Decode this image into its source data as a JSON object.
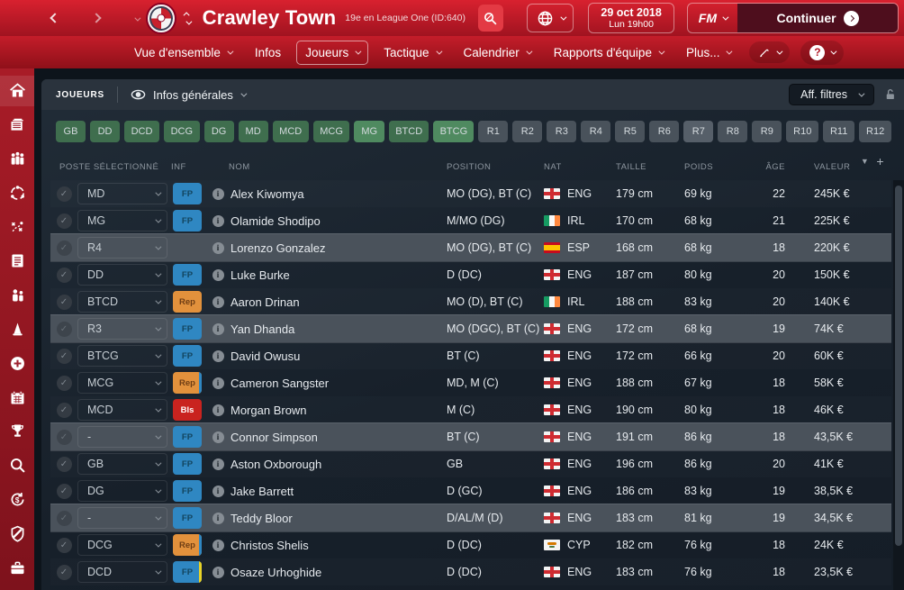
{
  "topbar": {
    "club_name": "Crawley Town",
    "club_subtitle": "19e en League One (ID:640)",
    "date_line1": "29 oct 2018",
    "date_line2": "Lun 19h00",
    "fm_label": "FM",
    "continue_label": "Continuer"
  },
  "nav": {
    "items": [
      {
        "label": "Vue d'ensemble",
        "caret": true,
        "active": false
      },
      {
        "label": "Infos",
        "caret": false,
        "active": false
      },
      {
        "label": "Joueurs",
        "caret": true,
        "active": true
      },
      {
        "label": "Tactique",
        "caret": true,
        "active": false
      },
      {
        "label": "Calendrier",
        "caret": true,
        "active": false
      },
      {
        "label": "Rapports d'équipe",
        "caret": true,
        "active": false
      },
      {
        "label": "Plus...",
        "caret": true,
        "active": false
      }
    ]
  },
  "subheader": {
    "section_label": "JOUEURS",
    "view_label": "Infos générales",
    "filters_label": "Aff. filtres"
  },
  "filters": {
    "chips": [
      {
        "label": "GB",
        "style": "green"
      },
      {
        "label": "DD",
        "style": "green"
      },
      {
        "label": "DCD",
        "style": "green"
      },
      {
        "label": "DCG",
        "style": "green"
      },
      {
        "label": "DG",
        "style": "green"
      },
      {
        "label": "MD",
        "style": "green"
      },
      {
        "label": "MCD",
        "style": "green"
      },
      {
        "label": "MCG",
        "style": "green"
      },
      {
        "label": "MG",
        "style": "green-bright"
      },
      {
        "label": "BTCD",
        "style": "green"
      },
      {
        "label": "BTCG",
        "style": "green-bright"
      },
      {
        "label": "R1",
        "style": "gray"
      },
      {
        "label": "R2",
        "style": "gray"
      },
      {
        "label": "R3",
        "style": "gray"
      },
      {
        "label": "R4",
        "style": "gray"
      },
      {
        "label": "R5",
        "style": "gray"
      },
      {
        "label": "R6",
        "style": "gray"
      },
      {
        "label": "R7",
        "style": "gray-bright"
      },
      {
        "label": "R8",
        "style": "gray"
      },
      {
        "label": "R9",
        "style": "gray"
      },
      {
        "label": "R10",
        "style": "gray"
      },
      {
        "label": "R11",
        "style": "gray"
      },
      {
        "label": "R12",
        "style": "gray"
      }
    ]
  },
  "table": {
    "columns": [
      "POSTE SÉLECTIONNÉ",
      "INF",
      "NOM",
      "POSITION",
      "NAT",
      "TAILLE",
      "POIDS",
      "ÂGE",
      "VALEUR"
    ],
    "sort_icon": "▼",
    "add_icon": "+",
    "rows": [
      {
        "pos": "MD",
        "badge": "FP",
        "badge_type": "fp",
        "stripe": null,
        "name": "Alex Kiwomya",
        "position": "MO (DG), BT (C)",
        "nat": "ENG",
        "height": "179 cm",
        "weight": "69 kg",
        "age": "22",
        "value": "245K €",
        "highlight": false
      },
      {
        "pos": "MG",
        "badge": "FP",
        "badge_type": "fp",
        "stripe": null,
        "name": "Olamide Shodipo",
        "position": "M/MO (DG)",
        "nat": "IRL",
        "height": "170 cm",
        "weight": "68 kg",
        "age": "21",
        "value": "225K €",
        "highlight": false
      },
      {
        "pos": "R4",
        "badge": null,
        "badge_type": null,
        "stripe": null,
        "name": "Lorenzo Gonzalez",
        "position": "MO (DG), BT (C)",
        "nat": "ESP",
        "height": "168 cm",
        "weight": "68 kg",
        "age": "18",
        "value": "220K €",
        "highlight": true
      },
      {
        "pos": "DD",
        "badge": "FP",
        "badge_type": "fp",
        "stripe": null,
        "name": "Luke Burke",
        "position": "D (DC)",
        "nat": "ENG",
        "height": "187 cm",
        "weight": "80 kg",
        "age": "20",
        "value": "150K €",
        "highlight": false
      },
      {
        "pos": "BTCD",
        "badge": "Rep",
        "badge_type": "rep",
        "stripe": null,
        "name": "Aaron Drinan",
        "position": "MO (D), BT (C)",
        "nat": "IRL",
        "height": "188 cm",
        "weight": "83 kg",
        "age": "20",
        "value": "140K €",
        "highlight": false
      },
      {
        "pos": "R3",
        "badge": "FP",
        "badge_type": "fp",
        "stripe": null,
        "name": "Yan Dhanda",
        "position": "MO (DGC), BT (C)",
        "nat": "ENG",
        "height": "172 cm",
        "weight": "68 kg",
        "age": "19",
        "value": "74K €",
        "highlight": true
      },
      {
        "pos": "BTCG",
        "badge": "FP",
        "badge_type": "fp",
        "stripe": null,
        "name": "David Owusu",
        "position": "BT (C)",
        "nat": "ENG",
        "height": "172 cm",
        "weight": "66 kg",
        "age": "20",
        "value": "60K €",
        "highlight": false
      },
      {
        "pos": "MCG",
        "badge": "Rep",
        "badge_type": "rep",
        "stripe": "blue",
        "name": "Cameron Sangster",
        "position": "MD, M (C)",
        "nat": "ENG",
        "height": "188 cm",
        "weight": "67 kg",
        "age": "18",
        "value": "58K €",
        "highlight": false
      },
      {
        "pos": "MCD",
        "badge": "Bls",
        "badge_type": "bls",
        "stripe": null,
        "name": "Morgan Brown",
        "position": "M (C)",
        "nat": "ENG",
        "height": "190 cm",
        "weight": "80 kg",
        "age": "18",
        "value": "46K €",
        "highlight": false
      },
      {
        "pos": "-",
        "badge": "FP",
        "badge_type": "fp",
        "stripe": null,
        "name": "Connor Simpson",
        "position": "BT (C)",
        "nat": "ENG",
        "height": "191 cm",
        "weight": "86 kg",
        "age": "18",
        "value": "43,5K €",
        "highlight": true
      },
      {
        "pos": "GB",
        "badge": "FP",
        "badge_type": "fp",
        "stripe": null,
        "name": "Aston Oxborough",
        "position": "GB",
        "nat": "ENG",
        "height": "196 cm",
        "weight": "86 kg",
        "age": "20",
        "value": "41K €",
        "highlight": false
      },
      {
        "pos": "DG",
        "badge": "FP",
        "badge_type": "fp",
        "stripe": null,
        "name": "Jake Barrett",
        "position": "D (GC)",
        "nat": "ENG",
        "height": "186 cm",
        "weight": "83 kg",
        "age": "19",
        "value": "38,5K €",
        "highlight": false
      },
      {
        "pos": "-",
        "badge": "FP",
        "badge_type": "fp",
        "stripe": null,
        "name": "Teddy Bloor",
        "position": "D/AL/M (D)",
        "nat": "ENG",
        "height": "183 cm",
        "weight": "81 kg",
        "age": "19",
        "value": "34,5K €",
        "highlight": true
      },
      {
        "pos": "DCG",
        "badge": "Rep",
        "badge_type": "rep",
        "stripe": "blue",
        "name": "Christos Shelis",
        "position": "D (DC)",
        "nat": "CYP",
        "height": "182 cm",
        "weight": "76 kg",
        "age": "18",
        "value": "24K €",
        "highlight": false
      },
      {
        "pos": "DCD",
        "badge": "FP",
        "badge_type": "fp",
        "stripe": "yellow",
        "name": "Osaze Urhoghide",
        "position": "D (DC)",
        "nat": "ENG",
        "height": "183 cm",
        "weight": "76 kg",
        "age": "18",
        "value": "23,5K €",
        "highlight": false
      }
    ]
  },
  "sidebar": {
    "items": [
      {
        "icon": "home-icon"
      },
      {
        "icon": "inbox-icon"
      },
      {
        "icon": "squad-icon"
      },
      {
        "icon": "dynamics-icon"
      },
      {
        "icon": "tactics-icon"
      },
      {
        "icon": "notes-icon"
      },
      {
        "icon": "staff-icon"
      },
      {
        "icon": "training-cone-icon"
      },
      {
        "icon": "add-icon"
      },
      {
        "icon": "calendar-icon"
      },
      {
        "icon": "trophy-icon"
      },
      {
        "icon": "search-icon"
      },
      {
        "icon": "finances-icon"
      },
      {
        "icon": "shield-icon"
      },
      {
        "icon": "briefcase-icon"
      }
    ]
  },
  "colors": {
    "accent_red": "#c41d2a",
    "badge_fp": "#2f87c2",
    "badge_rep": "#e2913c",
    "badge_bls": "#c9231f",
    "chip_green": "#3f6e4e",
    "chip_gray": "#49525b",
    "row_highlight": "#4a525b",
    "panel_bg": "#1b242e"
  }
}
